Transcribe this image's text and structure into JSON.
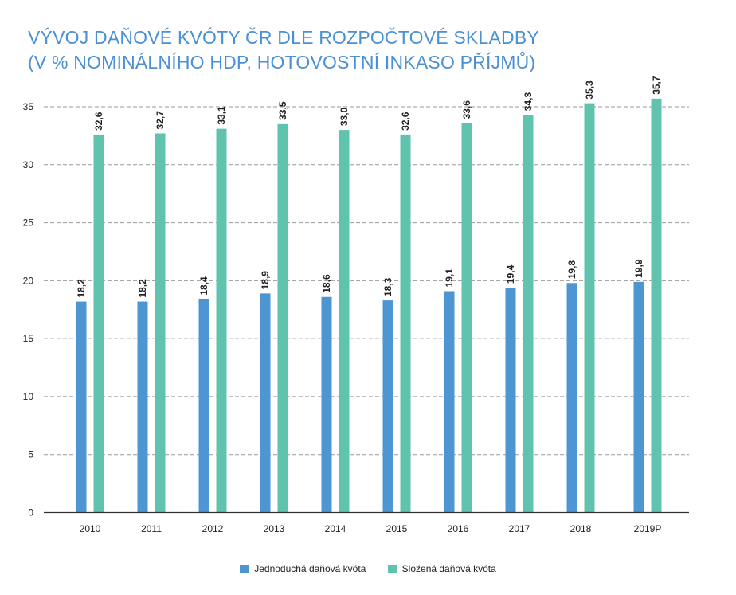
{
  "title": {
    "line1": "VÝVOJ DAŇOVÉ KVÓTY ČR DLE ROZPOČTOVÉ SKLADBY",
    "line2": "(V % NOMINÁLNÍHO HDP, HOTOVOSTNÍ INKASO PŘÍJMŮ)"
  },
  "colors": {
    "title": "#4a90d4",
    "series_1": "#4d95d3",
    "series_2": "#5fc3ad",
    "grid": "#9a9a9a"
  },
  "chart_data": {
    "type": "bar",
    "categories": [
      "2010",
      "2011",
      "2012",
      "2013",
      "2014",
      "2015",
      "2016",
      "2017",
      "2018",
      "2019P"
    ],
    "series": [
      {
        "name": "Jednoduchá daňová kvóta",
        "color": "#4d95d3",
        "values": [
          18.2,
          18.2,
          18.4,
          18.9,
          18.6,
          18.3,
          19.1,
          19.4,
          19.8,
          19.9
        ],
        "labels": [
          "18,2",
          "18,2",
          "18,4",
          "18,9",
          "18,6",
          "18,3",
          "19,1",
          "19,4",
          "19,8",
          "19,9"
        ]
      },
      {
        "name": "Složená daňová kvóta",
        "color": "#5fc3ad",
        "values": [
          32.6,
          32.7,
          33.1,
          33.5,
          33.0,
          32.6,
          33.6,
          34.3,
          35.3,
          35.7
        ],
        "labels": [
          "32,6",
          "32,7",
          "33,1",
          "33,5",
          "33,0",
          "32,6",
          "33,6",
          "34,3",
          "35,3",
          "35,7"
        ]
      }
    ],
    "yticks": [
      "0",
      "5",
      "10",
      "15",
      "20",
      "25",
      "30",
      "35"
    ],
    "ylim": [
      0,
      35
    ],
    "grid": "horizontal dashed",
    "legend_position": "bottom"
  }
}
